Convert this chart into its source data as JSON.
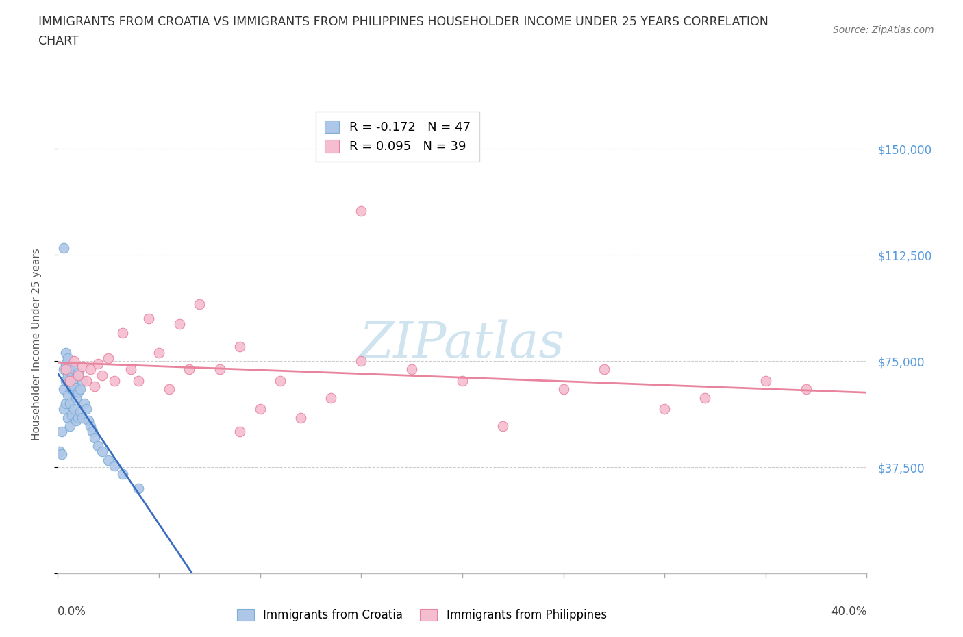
{
  "title_line1": "IMMIGRANTS FROM CROATIA VS IMMIGRANTS FROM PHILIPPINES HOUSEHOLDER INCOME UNDER 25 YEARS CORRELATION",
  "title_line2": "CHART",
  "source": "Source: ZipAtlas.com",
  "ylabel": "Householder Income Under 25 years",
  "yticks": [
    0,
    37500,
    75000,
    112500,
    150000
  ],
  "ytick_labels": [
    "",
    "$37,500",
    "$75,000",
    "$112,500",
    "$150,000"
  ],
  "xlim": [
    0.0,
    0.4
  ],
  "ylim": [
    0,
    162000
  ],
  "r_croatia": -0.172,
  "n_croatia": 47,
  "r_philippines": 0.095,
  "n_philippines": 39,
  "croatia_color": "#aec6e8",
  "croatia_edge": "#7bafd4",
  "philippines_color": "#f5bdd0",
  "philippines_edge": "#e8849e",
  "croatia_line_color": "#3a6dbf",
  "philippines_line_color": "#e8849e",
  "dashed_line_color": "#aaccee",
  "watermark_color": "#d0e4f0",
  "yaxis_label_color": "#5599dd",
  "croatia_x": [
    0.001,
    0.002,
    0.002,
    0.003,
    0.003,
    0.003,
    0.004,
    0.004,
    0.004,
    0.004,
    0.005,
    0.005,
    0.005,
    0.005,
    0.006,
    0.006,
    0.006,
    0.006,
    0.007,
    0.007,
    0.007,
    0.008,
    0.008,
    0.008,
    0.009,
    0.009,
    0.009,
    0.01,
    0.01,
    0.01,
    0.011,
    0.011,
    0.012,
    0.012,
    0.013,
    0.014,
    0.015,
    0.016,
    0.017,
    0.018,
    0.02,
    0.022,
    0.025,
    0.028,
    0.032,
    0.04,
    0.003
  ],
  "croatia_y": [
    43000,
    50000,
    42000,
    58000,
    65000,
    72000,
    60000,
    68000,
    74000,
    78000,
    55000,
    63000,
    70000,
    76000,
    52000,
    60000,
    68000,
    73000,
    56000,
    65000,
    70000,
    58000,
    66000,
    72000,
    54000,
    62000,
    69000,
    55000,
    64000,
    71000,
    57000,
    65000,
    55000,
    68000,
    60000,
    58000,
    54000,
    52000,
    50000,
    48000,
    45000,
    43000,
    40000,
    38000,
    35000,
    30000,
    115000
  ],
  "philippines_x": [
    0.004,
    0.006,
    0.008,
    0.01,
    0.012,
    0.014,
    0.016,
    0.018,
    0.02,
    0.022,
    0.025,
    0.028,
    0.032,
    0.036,
    0.04,
    0.045,
    0.05,
    0.055,
    0.06,
    0.065,
    0.07,
    0.08,
    0.09,
    0.1,
    0.11,
    0.12,
    0.135,
    0.15,
    0.175,
    0.2,
    0.22,
    0.25,
    0.27,
    0.3,
    0.32,
    0.35,
    0.37,
    0.15,
    0.09
  ],
  "philippines_y": [
    72000,
    68000,
    75000,
    70000,
    73000,
    68000,
    72000,
    66000,
    74000,
    70000,
    76000,
    68000,
    85000,
    72000,
    68000,
    90000,
    78000,
    65000,
    88000,
    72000,
    95000,
    72000,
    80000,
    58000,
    68000,
    55000,
    62000,
    128000,
    72000,
    68000,
    52000,
    65000,
    72000,
    58000,
    62000,
    68000,
    65000,
    75000,
    50000
  ]
}
